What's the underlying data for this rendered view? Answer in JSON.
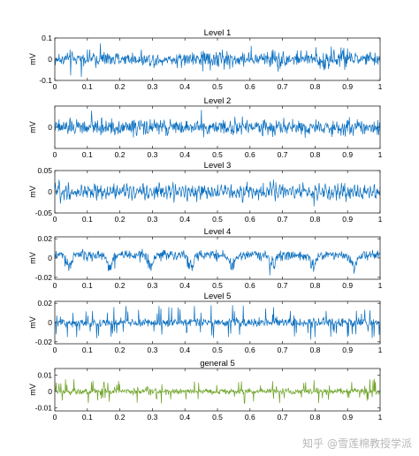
{
  "watermark": "知乎 @雪莲棉教授学派",
  "chart_data": [
    {
      "type": "line",
      "title": "Level 1",
      "ylabel": "mV",
      "xlim": [
        0,
        1
      ],
      "ylim": [
        -0.1,
        0.1
      ],
      "x_ticks": [
        "0",
        "0.1",
        "0.2",
        "0.3",
        "0.4",
        "0.5",
        "0.6",
        "0.7",
        "0.8",
        "0.9",
        "1"
      ],
      "y_ticks": [
        "-0.1",
        "0",
        "0.1"
      ],
      "color": "#0a6fc0",
      "signal": {
        "style": "dense_noise",
        "amplitude": 0.032,
        "peak_abs": 0.095,
        "burst_regions": [
          [
            0.45,
            0.55
          ],
          [
            0.65,
            0.7
          ],
          [
            0.8,
            0.9
          ]
        ]
      }
    },
    {
      "type": "line",
      "title": "Level 2",
      "ylabel": "mV",
      "xlim": [
        0,
        1
      ],
      "ylim": [
        -0.05,
        0.05
      ],
      "x_ticks": [
        "0",
        "0.1",
        "0.2",
        "0.3",
        "0.4",
        "0.5",
        "0.6",
        "0.7",
        "0.8",
        "0.9",
        "1"
      ],
      "y_ticks": [
        "0"
      ],
      "color": "#0a6fc0",
      "signal": {
        "style": "dense_noise",
        "amplitude": 0.018,
        "peak_abs": 0.045
      }
    },
    {
      "type": "line",
      "title": "Level 3",
      "ylabel": "mV",
      "xlim": [
        0,
        1
      ],
      "ylim": [
        -0.05,
        0.05
      ],
      "x_ticks": [
        "0",
        "0.1",
        "0.2",
        "0.3",
        "0.4",
        "0.5",
        "0.6",
        "0.7",
        "0.8",
        "0.9",
        "1"
      ],
      "y_ticks": [
        "-0.05",
        "0",
        "0.05"
      ],
      "color": "#0a6fc0",
      "signal": {
        "style": "oscillation",
        "amplitude": 0.016,
        "peak_abs": 0.045
      }
    },
    {
      "type": "line",
      "title": "Level 4",
      "ylabel": "mV",
      "xlim": [
        0,
        1
      ],
      "ylim": [
        -0.022,
        0.022
      ],
      "x_ticks": [
        "0",
        "0.1",
        "0.2",
        "0.3",
        "0.4",
        "0.5",
        "0.6",
        "0.7",
        "0.8",
        "0.9",
        "1"
      ],
      "y_ticks": [
        "-0.02",
        "0",
        "0.02"
      ],
      "color": "#0a6fc0",
      "signal": {
        "style": "periodic_dips",
        "amplitude": 0.005,
        "dip_depth": 0.012,
        "period": 0.125,
        "peak_abs": 0.02
      }
    },
    {
      "type": "line",
      "title": "Level 5",
      "ylabel": "mV",
      "xlim": [
        0,
        1
      ],
      "ylim": [
        -0.022,
        0.022
      ],
      "x_ticks": [
        "0",
        "0.1",
        "0.2",
        "0.3",
        "0.4",
        "0.5",
        "0.6",
        "0.7",
        "0.8",
        "0.9",
        "1"
      ],
      "y_ticks": [
        "-0.02",
        "0",
        "0.02"
      ],
      "color": "#0a6fc0",
      "signal": {
        "style": "spiky",
        "amplitude": 0.007,
        "peak_abs": 0.02
      }
    },
    {
      "type": "line",
      "title": "general 5",
      "ylabel": "mV",
      "xlim": [
        0,
        1
      ],
      "ylim": [
        -0.012,
        0.014
      ],
      "x_ticks": [
        "0",
        "0.1",
        "0.2",
        "0.3",
        "0.4",
        "0.5",
        "0.6",
        "0.7",
        "0.8",
        "0.9",
        "1"
      ],
      "y_ticks": [
        "-0.01",
        "0",
        "0.01"
      ],
      "color": "#6aa121",
      "signal": {
        "style": "spiky",
        "amplitude": 0.003,
        "peak_abs": 0.011
      }
    }
  ]
}
